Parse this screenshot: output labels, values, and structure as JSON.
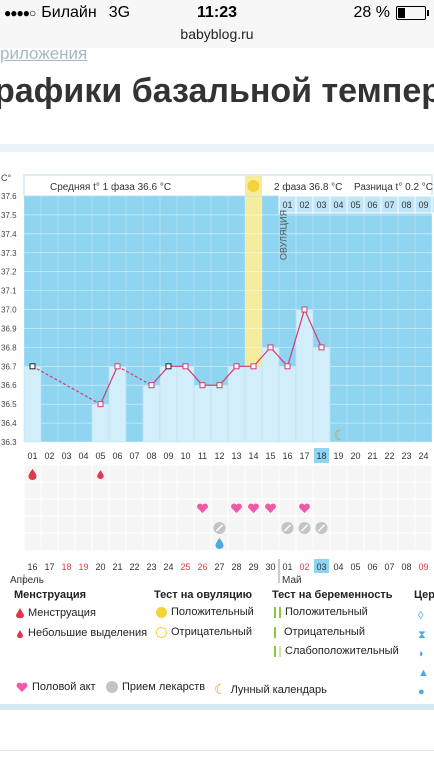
{
  "status": {
    "carrier": "Билайн",
    "network": "3G",
    "time": "11:23",
    "battery": "28 %",
    "battery_level": 0.28
  },
  "browser": {
    "url": "babyblog.ru"
  },
  "page": {
    "cut_link": "риложения",
    "title": "рафики базальной темпер"
  },
  "chart": {
    "unit": "С°",
    "phase1": "Средняя t° 1 фаза",
    "phase1_val": "36.6 °С",
    "phase2": "2 фаза",
    "phase2_val": "36.8 °С",
    "diff": "Разница t°",
    "diff_val": "0.2 °С",
    "ovulation": "ОВУЛЯЦИЯ",
    "month1": "Апрель",
    "month2": "Май",
    "y_ticks": [
      "37.6",
      "37.5",
      "37.4",
      "37.3",
      "37.2",
      "37.1",
      "37.0",
      "36.9",
      "36.8",
      "36.7",
      "36.6",
      "36.5",
      "36.4",
      "36.3"
    ],
    "cycle_days": [
      "01",
      "02",
      "03",
      "04",
      "05",
      "06",
      "07",
      "08",
      "09",
      "10",
      "11",
      "12",
      "13",
      "14",
      "15",
      "16",
      "17",
      "18",
      "19",
      "20",
      "21",
      "22",
      "23",
      "24"
    ],
    "dates": [
      "16",
      "17",
      "18",
      "19",
      "20",
      "21",
      "22",
      "23",
      "24",
      "25",
      "26",
      "27",
      "28",
      "29",
      "30",
      "01",
      "02",
      "03",
      "04",
      "05",
      "06",
      "07",
      "08",
      "09"
    ],
    "weekend": [
      2,
      3,
      9,
      10,
      16,
      23
    ],
    "top_days": [
      "01",
      "02",
      "03",
      "04",
      "05",
      "06",
      "07",
      "08",
      "09",
      "10"
    ],
    "temps": [
      36.7,
      null,
      null,
      null,
      36.5,
      36.7,
      null,
      36.6,
      36.7,
      36.7,
      36.6,
      36.6,
      36.7,
      36.7,
      36.8,
      36.7,
      37.0,
      36.8
    ],
    "ovulation_day": 14,
    "today_cycle": 18,
    "today_date": 18
  },
  "legend": {
    "menstruation": "Менструация",
    "menstruation_item": "Менструация",
    "spotting": "Небольшие выделения",
    "ov_test": "Тест на овуляцию",
    "ov_pos": "Положительный",
    "ov_neg": "Отрицательный",
    "preg_test": "Тест на беременность",
    "preg_pos": "Положительный",
    "preg_neg": "Отрицательный",
    "preg_weak": "Слабоположительный",
    "cut_col": "Цер",
    "intercourse": "Половой акт",
    "medicine": "Прием лекарств",
    "lunar": "Лунный календарь"
  }
}
